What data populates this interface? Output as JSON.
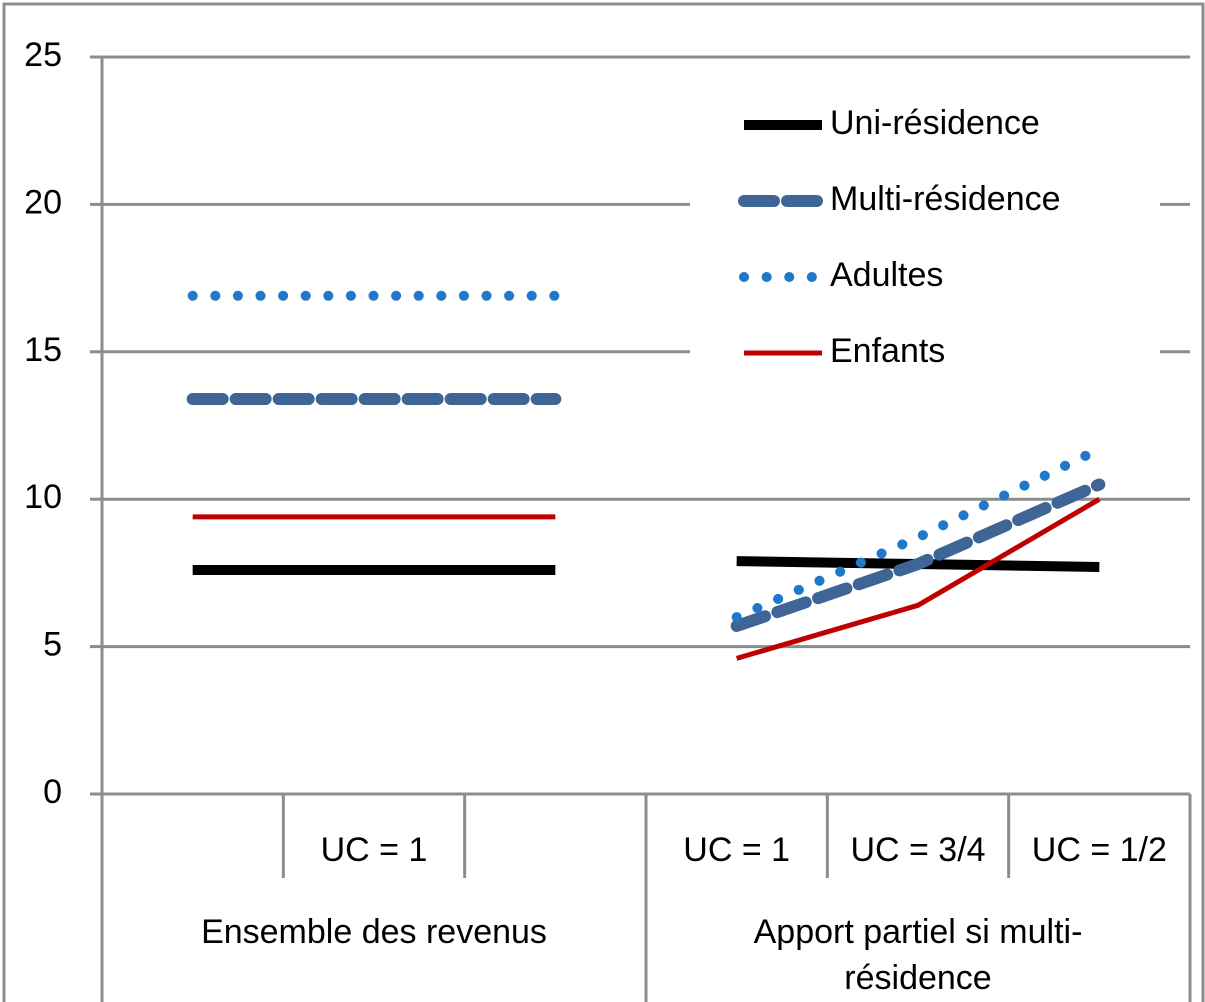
{
  "chart_data": {
    "type": "line",
    "categories": [
      null,
      "UC = 1",
      null,
      "UC = 1",
      "UC = 3/4",
      "UC = 1/2"
    ],
    "groups": [
      {
        "label": "Ensemble des revenus",
        "size": 3
      },
      {
        "label": "Apport partiel si multi-résidence",
        "size": 3
      }
    ],
    "series": [
      {
        "name": "Uni-résidence",
        "color": "#000000",
        "values": [
          7.6,
          7.6,
          7.6,
          7.9,
          7.8,
          7.7
        ]
      },
      {
        "name": "Multi-résidence",
        "color": "#3f6597",
        "values": [
          13.4,
          13.4,
          13.4,
          5.7,
          7.8,
          10.5
        ]
      },
      {
        "name": "Adultes",
        "color": "#1f78c8",
        "values": [
          16.9,
          16.9,
          16.9,
          6.0,
          8.7,
          11.7
        ]
      },
      {
        "name": "Enfants",
        "color": "#c00000",
        "values": [
          9.4,
          9.4,
          9.4,
          4.6,
          6.4,
          10.0
        ]
      }
    ],
    "ylim": [
      0,
      25
    ],
    "yticks": [
      0,
      5,
      10,
      15,
      20,
      25
    ],
    "grid": true,
    "legend": "top-right"
  }
}
